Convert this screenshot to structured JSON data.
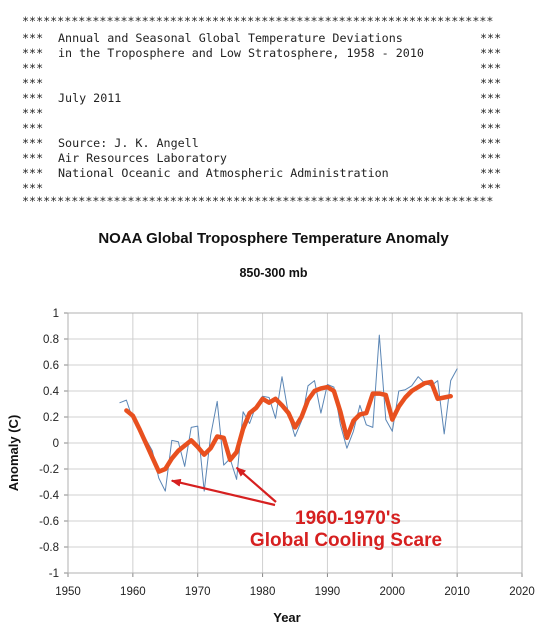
{
  "header": {
    "border": "*******************************************************************",
    "prefix": "***",
    "suffix": "***",
    "lines": [
      "Annual and Seasonal Global Temperature Deviations",
      "in the Troposphere and Low Stratosphere, 1958 - 2010",
      "",
      "",
      "July 2011",
      "",
      "",
      "Source: J. K. Angell",
      "Air Resources Laboratory",
      "National Oceanic and Atmospheric Administration",
      ""
    ]
  },
  "chart_data": {
    "type": "line",
    "title": "NOAA Global Troposphere Temperature Anomaly",
    "subtitle": "850-300 mb",
    "xlabel": "Year",
    "ylabel": "Anomaly (C)",
    "xlim": [
      1950,
      2020
    ],
    "ylim": [
      -1,
      1
    ],
    "xticks": [
      "1950",
      "1960",
      "1970",
      "1980",
      "1990",
      "2000",
      "2010",
      "2020"
    ],
    "yticks": [
      "1",
      "0.8",
      "0.6",
      "0.4",
      "0.2",
      "0",
      "-0.2",
      "-0.4",
      "-0.6",
      "-0.8",
      "-1"
    ],
    "grid": true,
    "series": [
      {
        "role": "annual",
        "color": "#5b86b5",
        "x": [
          1958,
          1959,
          1960,
          1961,
          1962,
          1963,
          1964,
          1965,
          1966,
          1967,
          1968,
          1969,
          1970,
          1971,
          1972,
          1973,
          1974,
          1975,
          1976,
          1977,
          1978,
          1979,
          1980,
          1981,
          1982,
          1983,
          1984,
          1985,
          1986,
          1987,
          1988,
          1989,
          1990,
          1991,
          1992,
          1993,
          1994,
          1995,
          1996,
          1997,
          1998,
          1999,
          2000,
          2001,
          2002,
          2003,
          2004,
          2005,
          2006,
          2007,
          2008,
          2009,
          2010
        ],
        "y": [
          0.31,
          0.33,
          0.18,
          0.12,
          0.03,
          -0.06,
          -0.27,
          -0.37,
          0.02,
          0.01,
          -0.18,
          0.12,
          0.13,
          -0.37,
          0.06,
          0.32,
          -0.17,
          -0.12,
          -0.28,
          0.24,
          0.15,
          0.29,
          0.36,
          0.35,
          0.19,
          0.51,
          0.22,
          0.05,
          0.17,
          0.44,
          0.48,
          0.23,
          0.45,
          0.43,
          0.14,
          -0.04,
          0.09,
          0.29,
          0.14,
          0.12,
          0.83,
          0.18,
          0.09,
          0.4,
          0.41,
          0.44,
          0.51,
          0.46,
          0.44,
          0.48,
          0.07,
          0.48,
          0.57
        ]
      },
      {
        "role": "smoothed",
        "color": "#e8501f",
        "x": [
          1959,
          1960,
          1961,
          1962,
          1963,
          1964,
          1965,
          1966,
          1967,
          1968,
          1969,
          1970,
          1971,
          1972,
          1973,
          1974,
          1975,
          1976,
          1977,
          1978,
          1979,
          1980,
          1981,
          1982,
          1983,
          1984,
          1985,
          1986,
          1987,
          1988,
          1989,
          1990,
          1991,
          1992,
          1993,
          1994,
          1995,
          1996,
          1997,
          1998,
          1999,
          2000,
          2001,
          2002,
          2003,
          2004,
          2005,
          2006,
          2007,
          2008,
          2009
        ],
        "y": [
          0.25,
          0.21,
          0.11,
          0.0,
          -0.11,
          -0.22,
          -0.2,
          -0.12,
          -0.06,
          -0.02,
          0.02,
          -0.03,
          -0.09,
          -0.04,
          0.05,
          0.04,
          -0.13,
          -0.07,
          0.11,
          0.23,
          0.27,
          0.34,
          0.31,
          0.34,
          0.29,
          0.23,
          0.12,
          0.2,
          0.33,
          0.4,
          0.42,
          0.43,
          0.4,
          0.24,
          0.04,
          0.17,
          0.22,
          0.23,
          0.38,
          0.38,
          0.37,
          0.18,
          0.28,
          0.35,
          0.4,
          0.43,
          0.46,
          0.47,
          0.34,
          0.35,
          0.36
        ]
      }
    ],
    "annotation": {
      "lines": [
        "1960-1970's",
        "Global Cooling Scare"
      ],
      "color": "#d62020",
      "arrow_targets": [
        [
          1966,
          -0.29
        ],
        [
          1976,
          -0.19
        ]
      ]
    }
  }
}
